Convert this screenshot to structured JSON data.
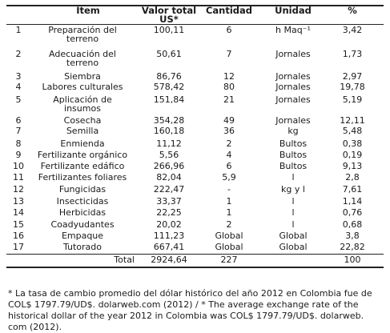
{
  "table": {
    "headers": [
      "Ítem",
      "Valor total US*",
      "Cantidad",
      "Unidad",
      "%"
    ],
    "rows": [
      {
        "n": "1",
        "item": "Preparación del terreno",
        "valor": "100,11",
        "cant": "6",
        "unidad": "h Maq⁻¹",
        "pct": "3,42"
      },
      {
        "n": "2",
        "item": "Adecuación del terreno",
        "valor": "50,61",
        "cant": "7",
        "unidad": "Jornales",
        "pct": "1,73"
      },
      {
        "n": "3",
        "item": "Siembra",
        "valor": "86,76",
        "cant": "12",
        "unidad": "Jornales",
        "pct": "2,97"
      },
      {
        "n": "4",
        "item": "Labores culturales",
        "valor": "578,42",
        "cant": "80",
        "unidad": "Jornales",
        "pct": "19,78"
      },
      {
        "n": "5",
        "item": "Aplicación de insumos",
        "valor": "151,84",
        "cant": "21",
        "unidad": "Jornales",
        "pct": "5,19"
      },
      {
        "n": "6",
        "item": "Cosecha",
        "valor": "354,28",
        "cant": "49",
        "unidad": "Jornales",
        "pct": "12,11"
      },
      {
        "n": "7",
        "item": "Semilla",
        "valor": "160,18",
        "cant": "36",
        "unidad": "kg",
        "pct": "5,48"
      },
      {
        "n": "8",
        "item": "Enmienda",
        "valor": "11,12",
        "cant": "2",
        "unidad": "Bultos",
        "pct": "0,38"
      },
      {
        "n": "9",
        "item": "Fertilizante orgánico",
        "valor": "5,56",
        "cant": "4",
        "unidad": "Bultos",
        "pct": "0,19"
      },
      {
        "n": "10",
        "item": "Fertilizante edáfico",
        "valor": "266,96",
        "cant": "6",
        "unidad": "Bultos",
        "pct": "9,13"
      },
      {
        "n": "11",
        "item": "Fertilizantes foliares",
        "valor": "82,04",
        "cant": "5,9",
        "unidad": "l",
        "pct": "2,8"
      },
      {
        "n": "12",
        "item": "Fungicidas",
        "valor": "222,47",
        "cant": "-",
        "unidad": "kg y l",
        "pct": "7,61"
      },
      {
        "n": "13",
        "item": "Insecticidas",
        "valor": "33,37",
        "cant": "1",
        "unidad": "l",
        "pct": "1,14"
      },
      {
        "n": "14",
        "item": "Herbicidas",
        "valor": "22,25",
        "cant": "1",
        "unidad": "l",
        "pct": "0,76"
      },
      {
        "n": "15",
        "item": "Coadyudantes",
        "valor": "20,02",
        "cant": "2",
        "unidad": "l",
        "pct": "0,68"
      },
      {
        "n": "16",
        "item": "Empaque",
        "valor": "111,23",
        "cant": "Global",
        "unidad": "Global",
        "pct": "3,8"
      },
      {
        "n": "17",
        "item": "Tutorado",
        "valor": "667,41",
        "cant": "Global",
        "unidad": "Global",
        "pct": "22,82"
      }
    ],
    "total": {
      "label": "Total",
      "valor": "2924,64",
      "cant": "227",
      "unidad": "",
      "pct": "100"
    }
  },
  "footnote": {
    "line1": "* La tasa de cambio promedio del dólar histórico del año 2012 en Colombia fue de",
    "line2": "COL$ 1797.79/UD$. dolarweb.com (2012)  / * The average exchange rate of the",
    "line3": "historical dollar of the year 2012 in Colombia was COL$ 1797.79/UD$. dolarweb.",
    "line4": "com (2012)."
  }
}
